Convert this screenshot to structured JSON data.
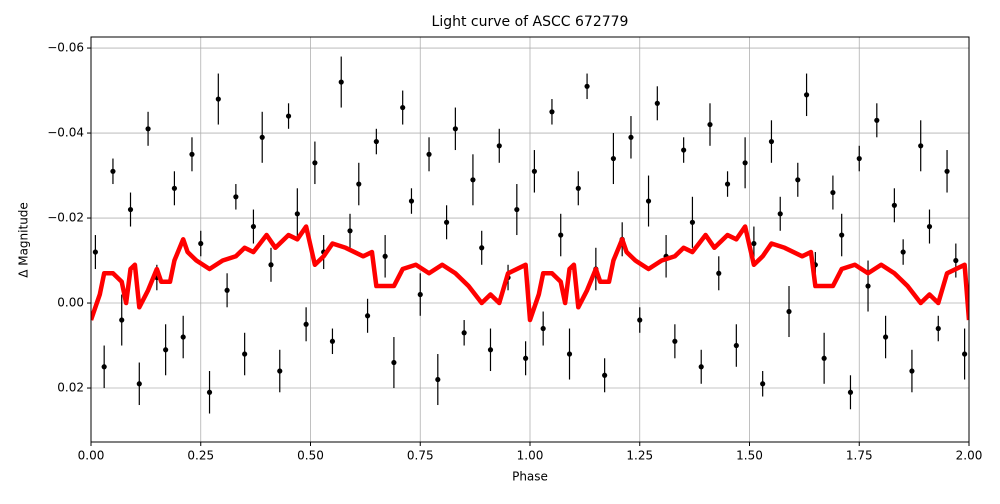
{
  "chart_data": {
    "type": "scatter",
    "title": "Light curve of ASCC 672779",
    "xlabel": "Phase",
    "ylabel": "Δ Magnitude",
    "xlim": [
      0,
      2
    ],
    "ylim": [
      0.0327,
      -0.0626
    ],
    "xticks": [
      {
        "value": 0,
        "label": "0.00"
      },
      {
        "value": 0.25,
        "label": "0.25"
      },
      {
        "value": 0.5,
        "label": "0.50"
      },
      {
        "value": 0.75,
        "label": "0.75"
      },
      {
        "value": 1,
        "label": "1.00"
      },
      {
        "value": 1.25,
        "label": "1.25"
      },
      {
        "value": 1.5,
        "label": "1.50"
      },
      {
        "value": 1.75,
        "label": "1.75"
      },
      {
        "value": 2,
        "label": "2.00"
      }
    ],
    "yticks": [
      {
        "value": -0.06,
        "label": "−0.06"
      },
      {
        "value": -0.04,
        "label": "−0.04"
      },
      {
        "value": -0.02,
        "label": "−0.02"
      },
      {
        "value": 0,
        "label": "0.00"
      },
      0.02
    ],
    "grid": true,
    "points": {
      "color": "#000000",
      "x": [
        0.01,
        0.03,
        0.05,
        0.07,
        0.09,
        0.11,
        0.13,
        0.15,
        0.17,
        0.19,
        0.21,
        0.23,
        0.25,
        0.27,
        0.29,
        0.31,
        0.33,
        0.35,
        0.37,
        0.39,
        0.41,
        0.43,
        0.45,
        0.47,
        0.49,
        0.51,
        0.53,
        0.55,
        0.57,
        0.59,
        0.61,
        0.63,
        0.65,
        0.67,
        0.69,
        0.71,
        0.73,
        0.75,
        0.77,
        0.79,
        0.81,
        0.83,
        0.85,
        0.87,
        0.89,
        0.91,
        0.93,
        0.95,
        0.97,
        0.99,
        1.01,
        1.03,
        1.05,
        1.07,
        1.09,
        1.11,
        1.13,
        1.15,
        1.17,
        1.19,
        1.21,
        1.23,
        1.25,
        1.27,
        1.29,
        1.31,
        1.33,
        1.35,
        1.37,
        1.39,
        1.41,
        1.43,
        1.45,
        1.47,
        1.49,
        1.51,
        1.53,
        1.55,
        1.57,
        1.59,
        1.61,
        1.63,
        1.65,
        1.67,
        1.69,
        1.71,
        1.73,
        1.75,
        1.77,
        1.79,
        1.81,
        1.83,
        1.85,
        1.87,
        1.89,
        1.91,
        1.93,
        1.95,
        1.97,
        1.99
      ],
      "values": [
        -0.012,
        0.015,
        -0.031,
        0.004,
        -0.022,
        0.019,
        -0.041,
        -0.006,
        0.011,
        -0.027,
        0.008,
        -0.035,
        -0.014,
        0.021,
        -0.048,
        -0.003,
        -0.025,
        0.012,
        -0.018,
        -0.039,
        -0.009,
        0.016,
        -0.044,
        -0.021,
        0.005,
        -0.033,
        -0.012,
        0.009,
        -0.052,
        -0.017,
        -0.028,
        0.003,
        -0.038,
        -0.011,
        0.014,
        -0.046,
        -0.024,
        -0.002,
        -0.035,
        0.018,
        -0.019,
        -0.041,
        0.007,
        -0.029,
        -0.013,
        0.011,
        -0.037,
        -0.006,
        -0.022,
        0.013,
        -0.031,
        0.006,
        -0.045,
        -0.016,
        0.012,
        -0.027,
        -0.051,
        -0.008,
        0.017,
        -0.034,
        -0.015,
        -0.039,
        0.004,
        -0.024,
        -0.047,
        -0.011,
        0.009,
        -0.036,
        -0.019,
        0.015,
        -0.042,
        -0.007,
        -0.028,
        0.01,
        -0.033,
        -0.014,
        0.019,
        -0.038,
        -0.021,
        0.002,
        -0.029,
        -0.049,
        -0.009,
        0.013,
        -0.026,
        -0.016,
        0.021,
        -0.034,
        -0.004,
        -0.043,
        0.008,
        -0.023,
        -0.012,
        0.016,
        -0.037,
        -0.018,
        0.006,
        -0.031,
        -0.01,
        0.012
      ],
      "errors": [
        0.004,
        0.005,
        0.003,
        0.006,
        0.004,
        0.005,
        0.004,
        0.003,
        0.006,
        0.004,
        0.005,
        0.004,
        0.003,
        0.005,
        0.006,
        0.004,
        0.003,
        0.005,
        0.004,
        0.006,
        0.004,
        0.005,
        0.003,
        0.006,
        0.004,
        0.005,
        0.004,
        0.003,
        0.006,
        0.004,
        0.005,
        0.004,
        0.003,
        0.005,
        0.006,
        0.004,
        0.003,
        0.005,
        0.004,
        0.006,
        0.004,
        0.005,
        0.003,
        0.006,
        0.004,
        0.005,
        0.004,
        0.003,
        0.006,
        0.004,
        0.005,
        0.004,
        0.003,
        0.005,
        0.006,
        0.004,
        0.003,
        0.005,
        0.004,
        0.006,
        0.004,
        0.005,
        0.003,
        0.006,
        0.004,
        0.005,
        0.004,
        0.003,
        0.006,
        0.004,
        0.005,
        0.004,
        0.003,
        0.005,
        0.006,
        0.004,
        0.003,
        0.005,
        0.004,
        0.006,
        0.004,
        0.005,
        0.003,
        0.006,
        0.004,
        0.005,
        0.004,
        0.003,
        0.006,
        0.004,
        0.005,
        0.004,
        0.003,
        0.005,
        0.006,
        0.004,
        0.003,
        0.005,
        0.004,
        0.006
      ]
    },
    "curve": {
      "color": "#ff0000",
      "x": [
        0,
        0.02,
        0.03,
        0.05,
        0.07,
        0.08,
        0.09,
        0.1,
        0.11,
        0.13,
        0.15,
        0.16,
        0.18,
        0.19,
        0.21,
        0.22,
        0.24,
        0.27,
        0.3,
        0.33,
        0.35,
        0.37,
        0.4,
        0.42,
        0.45,
        0.47,
        0.49,
        0.51,
        0.53,
        0.55,
        0.58,
        0.6,
        0.62,
        0.64,
        0.65,
        0.67,
        0.69,
        0.71,
        0.74,
        0.77,
        0.8,
        0.83,
        0.86,
        0.89,
        0.91,
        0.93,
        0.95,
        0.97,
        0.99,
        1,
        1.02,
        1.03,
        1.05,
        1.07,
        1.08,
        1.09,
        1.1,
        1.11,
        1.13,
        1.15,
        1.16,
        1.18,
        1.19,
        1.21,
        1.22,
        1.24,
        1.27,
        1.3,
        1.33,
        1.35,
        1.37,
        1.4,
        1.42,
        1.45,
        1.47,
        1.49,
        1.51,
        1.53,
        1.55,
        1.58,
        1.6,
        1.62,
        1.64,
        1.65,
        1.67,
        1.69,
        1.71,
        1.74,
        1.77,
        1.8,
        1.83,
        1.86,
        1.89,
        1.91,
        1.93,
        1.95,
        1.97,
        1.99,
        2
      ],
      "values": [
        0.004,
        -0.002,
        -0.007,
        -0.007,
        -0.005,
        0,
        -0.008,
        -0.009,
        0.001,
        -0.003,
        -0.008,
        -0.005,
        -0.005,
        -0.01,
        -0.015,
        -0.012,
        -0.01,
        -0.008,
        -0.01,
        -0.011,
        -0.013,
        -0.012,
        -0.016,
        -0.013,
        -0.016,
        -0.015,
        -0.018,
        -0.009,
        -0.011,
        -0.014,
        -0.013,
        -0.012,
        -0.011,
        -0.012,
        -0.004,
        -0.004,
        -0.004,
        -0.008,
        -0.009,
        -0.007,
        -0.009,
        -0.007,
        -0.004,
        0,
        -0.002,
        0,
        -0.007,
        -0.008,
        -0.009,
        0.004,
        -0.002,
        -0.007,
        -0.007,
        -0.005,
        0,
        -0.008,
        -0.009,
        0.001,
        -0.003,
        -0.008,
        -0.005,
        -0.005,
        -0.01,
        -0.015,
        -0.012,
        -0.01,
        -0.008,
        -0.01,
        -0.011,
        -0.013,
        -0.012,
        -0.016,
        -0.013,
        -0.016,
        -0.015,
        -0.018,
        -0.009,
        -0.011,
        -0.014,
        -0.013,
        -0.012,
        -0.011,
        -0.012,
        -0.004,
        -0.004,
        -0.004,
        -0.008,
        -0.009,
        -0.007,
        -0.009,
        -0.007,
        -0.004,
        0,
        -0.002,
        0,
        -0.007,
        -0.008,
        -0.009,
        0.004
      ]
    }
  }
}
